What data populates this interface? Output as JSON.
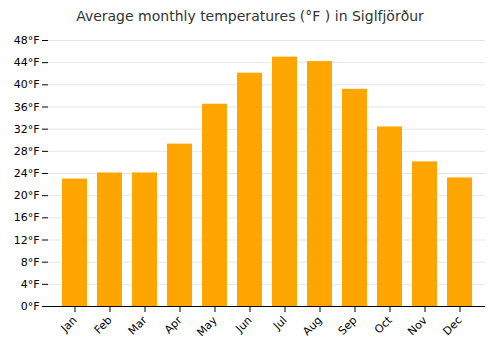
{
  "chart_data": {
    "type": "bar",
    "title": "Average monthly temperatures (°F ) in Siglfjörður",
    "categories": [
      "Jan",
      "Feb",
      "Mar",
      "Apr",
      "May",
      "Jun",
      "Jul",
      "Aug",
      "Sep",
      "Oct",
      "Nov",
      "Dec"
    ],
    "values": [
      23.0,
      24.1,
      24.1,
      29.3,
      36.5,
      42.1,
      45.0,
      44.2,
      39.2,
      32.4,
      26.1,
      23.2
    ],
    "color": "#FFA500",
    "ylim": [
      0,
      48
    ],
    "yticks": [
      {
        "value": 0,
        "label": "0°F"
      },
      {
        "value": 4,
        "label": "4°F"
      },
      {
        "value": 8,
        "label": "8°F"
      },
      {
        "value": 12,
        "label": "12°F"
      },
      {
        "value": 16,
        "label": "16°F"
      },
      {
        "value": 20,
        "label": "20°F"
      },
      {
        "value": 24,
        "label": "24°F"
      },
      {
        "value": 28,
        "label": "28°F"
      },
      {
        "value": 32,
        "label": "32°F"
      },
      {
        "value": 36,
        "label": "36°F"
      },
      {
        "value": 40,
        "label": "40°F"
      },
      {
        "value": 44,
        "label": "44°F"
      },
      {
        "value": 48,
        "label": "48°F"
      }
    ],
    "grid": true
  }
}
